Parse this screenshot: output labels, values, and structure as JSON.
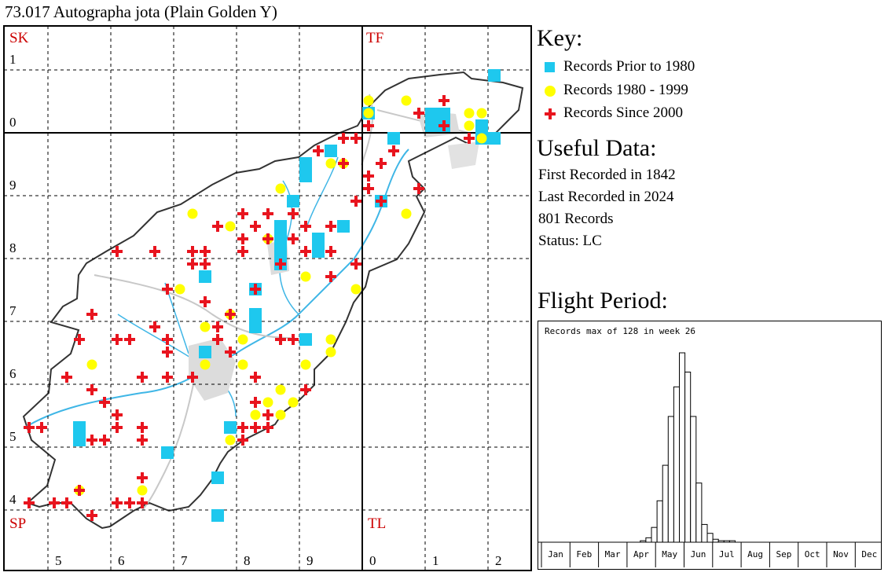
{
  "title": "73.017 Autographa jota (Plain Golden Y)",
  "map": {
    "square_labels": [
      "SK",
      "TF",
      "SP",
      "TL"
    ],
    "easting_labels": [
      "5",
      "6",
      "7",
      "8",
      "9",
      "0",
      "1",
      "2"
    ],
    "northing_labels": [
      "1",
      "0",
      "9",
      "8",
      "7",
      "6",
      "5",
      "4"
    ],
    "colors": {
      "prior_1980": "#1ec8ee",
      "r1980_1999": "#ffff00",
      "since_2000": "#e8141e",
      "grid_label": "#cc0000"
    }
  },
  "key": {
    "heading": "Key:",
    "items": [
      "Records Prior to 1980",
      "Records 1980 - 1999",
      "Records Since 2000"
    ]
  },
  "useful": {
    "heading": "Useful Data:",
    "first": "First Recorded in 1842",
    "last": "Last Recorded in 2024",
    "count": "801 Records",
    "status": "Status: LC"
  },
  "flight": {
    "heading": "Flight Period:",
    "note": "Records max of 128 in week 26",
    "months": [
      "Jan",
      "Feb",
      "Mar",
      "Apr",
      "May",
      "Jun",
      "Jul",
      "Aug",
      "Sep",
      "Oct",
      "Nov",
      "Dec"
    ]
  },
  "chart_data": {
    "type": "bar",
    "title": "Records max of 128 in week 26",
    "max_value": 128,
    "max_week": 26,
    "weeks": [
      19,
      20,
      21,
      22,
      23,
      24,
      25,
      26,
      27,
      28,
      29,
      30,
      31,
      32,
      33,
      34,
      35
    ],
    "values": [
      1,
      3,
      10,
      28,
      52,
      85,
      105,
      128,
      115,
      85,
      40,
      12,
      6,
      2,
      1,
      1,
      1
    ]
  }
}
